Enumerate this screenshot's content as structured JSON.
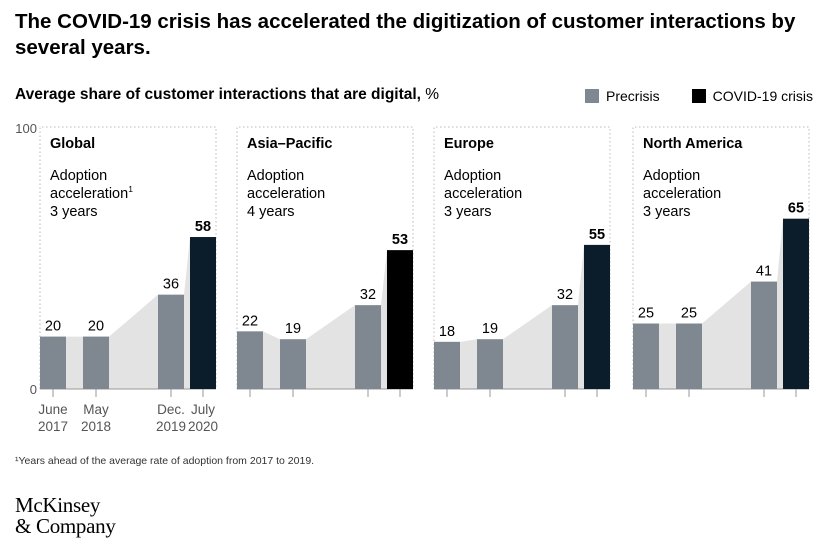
{
  "title": "The COVID-19 crisis has accelerated the digitization of customer interactions by several years.",
  "subtitle": {
    "main": "Average share of customer interactions that are digital,",
    "unit": " %"
  },
  "legend": {
    "precrisis": "Precrisis",
    "covid": "COVID-19 crisis"
  },
  "colors": {
    "precrisis": "#7f8890",
    "covid_dark": "#0b1c2a",
    "covid_black": "#000000",
    "area": "#e3e3e3",
    "dotted": "#bbbbbb"
  },
  "chart_data": [
    {
      "type": "bar",
      "region": "Global",
      "adoption_label": [
        "Adoption",
        "acceleration",
        "3 years"
      ],
      "footnote_marker": "1",
      "categories": [
        "June 2017",
        "May 2018",
        "Dec. 2019",
        "July 2020"
      ],
      "values": [
        20,
        20,
        36,
        58
      ],
      "phases": [
        "precrisis",
        "precrisis",
        "precrisis",
        "covid"
      ],
      "ylim": [
        0,
        100
      ]
    },
    {
      "type": "bar",
      "region": "Asia–Pacific",
      "adoption_label": [
        "Adoption",
        "acceleration",
        "4 years"
      ],
      "footnote_marker": "",
      "categories": [
        "June 2017",
        "May 2018",
        "Dec. 2019",
        "July 2020"
      ],
      "values": [
        22,
        19,
        32,
        53
      ],
      "phases": [
        "precrisis",
        "precrisis",
        "precrisis",
        "covid"
      ],
      "ylim": [
        0,
        100
      ]
    },
    {
      "type": "bar",
      "region": "Europe",
      "adoption_label": [
        "Adoption",
        "acceleration",
        "3 years"
      ],
      "footnote_marker": "",
      "categories": [
        "June 2017",
        "May 2018",
        "Dec. 2019",
        "July 2020"
      ],
      "values": [
        18,
        19,
        32,
        55
      ],
      "phases": [
        "precrisis",
        "precrisis",
        "precrisis",
        "covid"
      ],
      "ylim": [
        0,
        100
      ]
    },
    {
      "type": "bar",
      "region": "North America",
      "adoption_label": [
        "Adoption",
        "acceleration",
        "3 years"
      ],
      "footnote_marker": "",
      "categories": [
        "June 2017",
        "May 2018",
        "Dec. 2019",
        "July 2020"
      ],
      "values": [
        25,
        25,
        41,
        65
      ],
      "phases": [
        "precrisis",
        "precrisis",
        "precrisis",
        "covid"
      ],
      "ylim": [
        0,
        100
      ]
    }
  ],
  "axis": {
    "y_top_label": "100",
    "y_bottom_label": "0",
    "x_tick_labels": [
      [
        "June",
        "2017"
      ],
      [
        "May",
        "2018"
      ],
      [
        "Dec.",
        "2019"
      ],
      [
        "July",
        "2020"
      ]
    ]
  },
  "footnote": "¹Years ahead of the average rate of adoption from 2017 to 2019.",
  "logo": [
    "McKinsey",
    "& Company"
  ]
}
